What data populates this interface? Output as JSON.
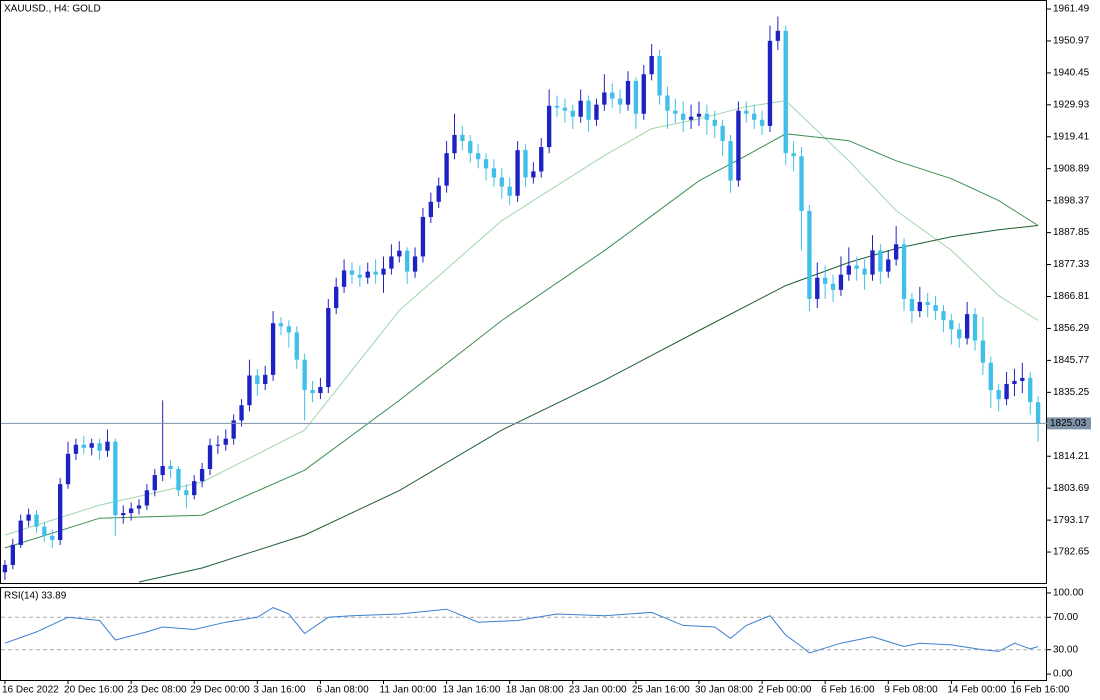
{
  "chart_data": [
    {
      "type": "candlestick",
      "title": "XAUUSD., H4:  GOLD",
      "open": [
        1776,
        1778.4,
        1785,
        1793,
        1795,
        1791,
        1788,
        1786.6,
        1805,
        1815,
        1818,
        1817,
        1818.5,
        1816,
        1819,
        1794.8,
        1795.5,
        1797,
        1798,
        1803,
        1808,
        1811,
        1810,
        1803,
        1801.4,
        1806,
        1810,
        1817.8,
        1818,
        1820,
        1826,
        1831,
        1840.8,
        1838,
        1841,
        1858,
        1857,
        1855,
        1846,
        1836,
        1835,
        1837,
        1863,
        1870,
        1875.4,
        1874,
        1873,
        1875,
        1874,
        1876,
        1880,
        1881.9,
        1875,
        1880,
        1893,
        1898,
        1903.3,
        1914,
        1920,
        1918,
        1914,
        1912,
        1909,
        1906,
        1903,
        1900,
        1915,
        1906,
        1908,
        1916,
        1929.6,
        1929,
        1928,
        1926,
        1931.3,
        1925,
        1930,
        1934,
        1932,
        1930,
        1937.8,
        1927,
        1940,
        1946,
        1933,
        1928,
        1927,
        1925,
        1926,
        1927,
        1925,
        1923,
        1918,
        1905,
        1928,
        1927,
        1925,
        1923,
        1951,
        1954.3,
        1914,
        1913,
        1895,
        1866,
        1873,
        1871,
        1869,
        1874,
        1877,
        1876,
        1874,
        1882,
        1875,
        1879,
        1884,
        1866,
        1862,
        1865,
        1864,
        1862,
        1859,
        1856,
        1853,
        1861,
        1852.3,
        1845,
        1836,
        1833,
        1838,
        1839,
        1840,
        1832
      ],
      "high": [
        1780,
        1787,
        1795,
        1797,
        1796.5,
        1792.5,
        1790,
        1807,
        1819,
        1820,
        1821,
        1820,
        1820,
        1823,
        1820,
        1798,
        1799,
        1800,
        1805,
        1810,
        1832.6,
        1813,
        1811,
        1805,
        1808,
        1812,
        1820,
        1821,
        1823,
        1828,
        1833,
        1846,
        1843,
        1844,
        1862,
        1860,
        1859,
        1857,
        1848,
        1839,
        1840,
        1866,
        1873,
        1879,
        1878,
        1877,
        1878,
        1879,
        1880,
        1884,
        1885,
        1883,
        1883,
        1896,
        1901,
        1906,
        1918,
        1927,
        1923,
        1920,
        1917,
        1914,
        1912,
        1909,
        1906,
        1918,
        1917,
        1911,
        1919,
        1935,
        1933,
        1932,
        1930,
        1935,
        1933,
        1932,
        1940,
        1937,
        1935,
        1941,
        1939,
        1943,
        1950,
        1948,
        1936,
        1932,
        1931,
        1930,
        1931,
        1930,
        1928,
        1925,
        1920,
        1931,
        1931,
        1930,
        1928,
        1956,
        1959,
        1956,
        1918,
        1916,
        1897,
        1878,
        1877,
        1874,
        1880,
        1883,
        1880,
        1879,
        1887,
        1884,
        1882,
        1890,
        1886,
        1868,
        1870,
        1868,
        1867,
        1864,
        1861,
        1858,
        1865,
        1863,
        1860,
        1847,
        1838,
        1842,
        1843,
        1845,
        1842,
        1834
      ],
      "low": [
        1773.5,
        1777,
        1784,
        1791,
        1789,
        1786,
        1784,
        1785,
        1803.5,
        1813,
        1815,
        1814.5,
        1813,
        1814,
        1788,
        1792,
        1793,
        1795,
        1796.5,
        1801,
        1806,
        1807,
        1801,
        1797,
        1800,
        1804,
        1808,
        1815,
        1816,
        1818,
        1824,
        1829,
        1834,
        1836,
        1839,
        1854,
        1850,
        1843,
        1826,
        1832,
        1833,
        1835,
        1861,
        1868,
        1871,
        1870,
        1871,
        1871,
        1868,
        1874,
        1878,
        1871,
        1873,
        1878,
        1891,
        1896,
        1901,
        1912,
        1915,
        1911,
        1909,
        1905,
        1903,
        1899,
        1897,
        1898,
        1903,
        1904,
        1906,
        1914,
        1926,
        1924,
        1922,
        1924,
        1921,
        1923,
        1928,
        1929,
        1927,
        1928,
        1922,
        1925,
        1938,
        1930,
        1922,
        1924,
        1921,
        1922,
        1923,
        1920,
        1919,
        1913,
        1901,
        1903,
        1924,
        1922,
        1920,
        1921,
        1948,
        1910,
        1908,
        1882,
        1862,
        1863,
        1866,
        1865,
        1867,
        1872,
        1872,
        1869,
        1872,
        1871,
        1873,
        1877,
        1862,
        1858,
        1860,
        1860,
        1859,
        1855,
        1851,
        1850,
        1851,
        1849,
        1841,
        1830,
        1829,
        1831,
        1834,
        1835,
        1828,
        1819
      ],
      "close": [
        1778.4,
        1785,
        1793,
        1795,
        1791,
        1788,
        1786.6,
        1805,
        1815,
        1818,
        1817,
        1818.5,
        1816,
        1819,
        1794.8,
        1795.5,
        1797,
        1798,
        1803,
        1808,
        1811,
        1810,
        1803,
        1801.4,
        1806,
        1810,
        1817.8,
        1818,
        1820,
        1826,
        1831,
        1840.8,
        1838,
        1841,
        1858,
        1857,
        1855,
        1846,
        1836,
        1835,
        1837,
        1863,
        1870,
        1875.4,
        1874,
        1873,
        1875,
        1874,
        1876,
        1880,
        1881.9,
        1875,
        1880,
        1893,
        1898,
        1903.3,
        1914,
        1920,
        1918,
        1914,
        1912,
        1909,
        1906,
        1903,
        1900,
        1915,
        1906,
        1908,
        1916,
        1929.6,
        1929,
        1928,
        1926,
        1931.3,
        1925,
        1930,
        1934,
        1932,
        1930,
        1937.8,
        1927,
        1940,
        1946,
        1933,
        1928,
        1927,
        1925,
        1926,
        1927,
        1925,
        1923,
        1918,
        1905,
        1928,
        1927,
        1925,
        1923,
        1951,
        1954.3,
        1914,
        1913,
        1895,
        1866,
        1873,
        1871,
        1869,
        1874,
        1877,
        1876,
        1874,
        1882,
        1875,
        1879,
        1884,
        1866,
        1862,
        1865,
        1864,
        1862,
        1859,
        1856,
        1853,
        1861,
        1852.3,
        1845,
        1836,
        1833,
        1838,
        1839,
        1840,
        1832,
        1825.03
      ],
      "up_color": "#1e22c3",
      "down_color": "#40c0e8",
      "series": [
        {
          "color": "#9fd6a9",
          "x": [
            0,
            12,
            25,
            38,
            50,
            63,
            76,
            82,
            88,
            94,
            99,
            107,
            113,
            120,
            126,
            131
          ],
          "values": [
            1788.25,
            1798.1,
            1805.7,
            1822.8,
            1862.2,
            1891.8,
            1913.2,
            1922.1,
            1925.3,
            1929.3,
            1931.3,
            1911.5,
            1895.1,
            1882.0,
            1867.1,
            1858.9
          ]
        },
        {
          "color": "#3e8d4e",
          "x": [
            0,
            12,
            25,
            38,
            50,
            63,
            76,
            82,
            88,
            94,
            99,
            107,
            113,
            120,
            126,
            131
          ],
          "values": [
            1783.98,
            1793.8,
            1794.8,
            1809.6,
            1832.6,
            1858.9,
            1881.9,
            1893.4,
            1904.9,
            1913.2,
            1920.4,
            1918.1,
            1911.5,
            1905.6,
            1898.4,
            1890.2
          ]
        },
        {
          "color": "#1f5e33",
          "x": [
            17,
            25,
            38,
            50,
            63,
            76,
            88,
            99,
            107,
            113,
            120,
            126,
            131
          ],
          "values": [
            1772.8,
            1777.4,
            1788.25,
            1802.9,
            1822.8,
            1839.2,
            1855.6,
            1870.4,
            1878.0,
            1882.6,
            1886.5,
            1888.8,
            1890.2
          ]
        }
      ],
      "last_price": 1825.03,
      "last_price_color": "#7f93a8",
      "xlim": [
        -0.5,
        132
      ],
      "ylim": [
        1772.46,
        1964.12
      ],
      "yticks": [
        1961.49,
        1950.97,
        1940.45,
        1929.93,
        1919.41,
        1908.89,
        1898.37,
        1887.85,
        1877.33,
        1866.81,
        1856.29,
        1845.77,
        1835.25,
        1814.21,
        1803.69,
        1793.17,
        1782.65
      ],
      "xticks": [
        {
          "value": 0,
          "label": "16 Dec 2022"
        },
        {
          "value": 8,
          "label": "20 Dec 16:00"
        },
        {
          "value": 16,
          "label": "23 Dec 08:00"
        },
        {
          "value": 24,
          "label": "29 Dec 00:00"
        },
        {
          "value": 32,
          "label": "3 Jan 16:00"
        },
        {
          "value": 40,
          "label": "6 Jan 08:00"
        },
        {
          "value": 48,
          "label": "11 Jan 00:00"
        },
        {
          "value": 56,
          "label": "13 Jan 16:00"
        },
        {
          "value": 64,
          "label": "18 Jan 08:00"
        },
        {
          "value": 72,
          "label": "23 Jan 00:00"
        },
        {
          "value": 80,
          "label": "25 Jan 16:00"
        },
        {
          "value": 88,
          "label": "30 Jan 08:00"
        },
        {
          "value": 96,
          "label": "2 Feb 00:00"
        },
        {
          "value": 104,
          "label": "6 Feb 16:00"
        },
        {
          "value": 112,
          "label": "9 Feb 08:00"
        },
        {
          "value": 120,
          "label": "14 Feb 00:00"
        },
        {
          "value": 128,
          "label": "16 Feb 16:00"
        }
      ]
    },
    {
      "type": "line",
      "title": "RSI(14) 33.89",
      "series": [
        {
          "color": "#3a7fd0",
          "x": [
            0,
            4,
            8,
            12,
            14,
            18,
            20,
            24,
            28,
            32,
            34,
            36,
            38,
            41,
            44,
            50,
            56,
            60,
            65,
            70,
            76,
            82,
            86,
            90,
            92,
            94,
            97,
            99,
            101,
            102,
            106,
            110,
            114,
            116,
            120,
            124,
            126,
            128,
            130,
            131
          ],
          "values": [
            38,
            52,
            70,
            66,
            42,
            52,
            58,
            55,
            64,
            70,
            82,
            74,
            50,
            70,
            72,
            74,
            80,
            64,
            66,
            74,
            72,
            76,
            60,
            58,
            44,
            60,
            72,
            48,
            34,
            26,
            38,
            46,
            34,
            38,
            36,
            30,
            28,
            38,
            31,
            33.89
          ]
        }
      ],
      "levels": [
        70,
        30
      ],
      "xlim": [
        -0.5,
        132
      ],
      "ylim": [
        -7.3,
        106.1
      ],
      "yticks": [
        {
          "value": 100,
          "label": "100.00"
        },
        {
          "value": 70,
          "label": "70.00"
        },
        {
          "value": 30,
          "label": "30.00"
        },
        {
          "value": 0,
          "label": "0.00"
        }
      ]
    }
  ]
}
